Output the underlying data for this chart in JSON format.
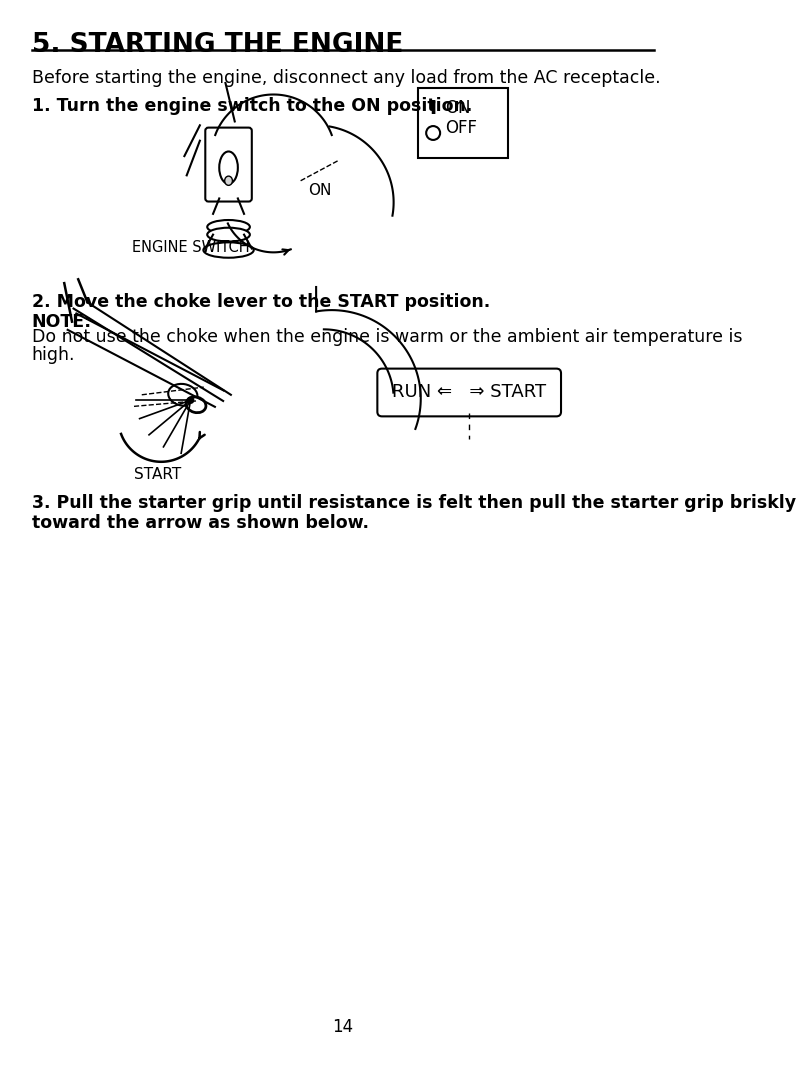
{
  "title": "5. STARTING THE ENGINE",
  "bg_color": "#ffffff",
  "text_color": "#000000",
  "intro_text": "Before starting the engine, disconnect any load from the AC receptacle.",
  "step1_heading": "1. Turn the engine switch to the ON position.",
  "step2_heading": "2. Move the choke lever to the START position.",
  "note_label": "NOTE:",
  "note_text": "Do not use the choke when the engine is warm or the ambient air temperature is",
  "note_text2": "high.",
  "step3_line1": "3. Pull the starter grip until resistance is felt then pull the starter grip briskly",
  "step3_line2": "toward the arrow as shown below.",
  "page_number": "14",
  "label_engine_switch": "ENGINE SWITCH",
  "label_on_symbol": "I",
  "label_on": "ON",
  "label_off_symbol": "O",
  "label_off": "OFF",
  "label_on_arrow": "ON",
  "label_start": "START",
  "label_run_start": "RUN ⇐   ⇒ START"
}
